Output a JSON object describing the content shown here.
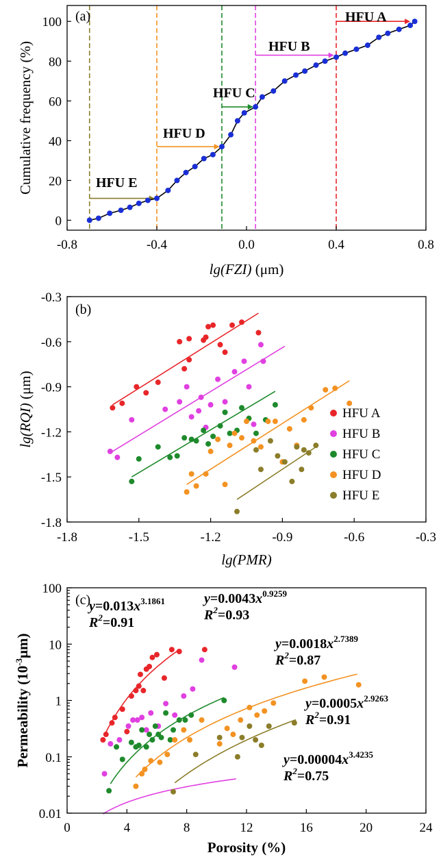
{
  "chart_data": [
    {
      "id": "a",
      "type": "line",
      "panel_label": "(a)",
      "xlabel_italic": "lg(FZI)",
      "xlabel_unit": " (μm)",
      "ylabel": "Cumulative frequency (%)",
      "xlim": [
        -0.8,
        0.8
      ],
      "ylim": [
        -5,
        108
      ],
      "xticks": [
        -0.8,
        -0.4,
        0.0,
        0.4,
        0.8
      ],
      "xtick_labels": [
        "-0.8",
        "-0.4",
        "0.0",
        "0.4",
        "0.8"
      ],
      "yticks": [
        0,
        20,
        40,
        60,
        80,
        100
      ],
      "ytick_labels": [
        "0",
        "20",
        "40",
        "60",
        "80",
        "100"
      ],
      "grid": false,
      "line_color": "#000000",
      "point_color": "#1a2fd6",
      "points": {
        "x": [
          -0.7,
          -0.66,
          -0.61,
          -0.56,
          -0.52,
          -0.48,
          -0.44,
          -0.4,
          -0.35,
          -0.31,
          -0.27,
          -0.23,
          -0.19,
          -0.15,
          -0.11,
          -0.07,
          -0.04,
          -0.01,
          0.04,
          0.07,
          0.12,
          0.17,
          0.22,
          0.26,
          0.31,
          0.35,
          0.4,
          0.44,
          0.49,
          0.54,
          0.59,
          0.63,
          0.68,
          0.73,
          0.75
        ],
        "y": [
          0,
          1,
          3.5,
          5,
          6.5,
          8.5,
          10,
          11,
          15,
          20,
          24,
          27,
          31,
          33,
          37,
          43,
          50,
          54,
          57,
          62,
          65,
          70,
          73,
          75,
          78,
          80,
          82,
          84,
          86,
          88,
          92,
          94,
          96,
          98,
          100
        ]
      },
      "boundaries": [
        {
          "x": -0.7,
          "color": "#8b7d2a"
        },
        {
          "x": -0.4,
          "color": "#f39222"
        },
        {
          "x": -0.11,
          "color": "#1e8a2c"
        },
        {
          "x": 0.04,
          "color": "#e040e0"
        },
        {
          "x": 0.4,
          "color": "#e8262a"
        }
      ],
      "annotations": [
        {
          "text": "HFU E",
          "x0": -0.7,
          "x1": -0.41,
          "y": 11,
          "color": "#8b7d2a"
        },
        {
          "text": "HFU D",
          "x0": -0.4,
          "x1": -0.12,
          "y": 37,
          "color": "#f39222"
        },
        {
          "text": "HFU C",
          "x0": -0.11,
          "x1": 0.03,
          "y": 57,
          "color": "#1e8a2c"
        },
        {
          "text": "HFU B",
          "x0": 0.04,
          "x1": 0.39,
          "y": 83,
          "color": "#e040e0"
        },
        {
          "text": "HFU A",
          "x0": 0.4,
          "x1": 0.73,
          "y": 100,
          "color": "#e8262a"
        }
      ]
    },
    {
      "id": "b",
      "type": "scatter",
      "panel_label": "(b)",
      "xlabel_italic": "lg(PMR)",
      "xlabel_unit": "",
      "ylabel_italic": "lg(RQI)",
      "ylabel_unit": " (μm)",
      "xlim": [
        -1.8,
        -0.3
      ],
      "ylim": [
        -1.8,
        -0.3
      ],
      "xticks": [
        -1.8,
        -1.5,
        -1.2,
        -0.9,
        -0.6,
        -0.3
      ],
      "xtick_labels": [
        "-1.8",
        "-1.5",
        "-1.2",
        "-0.9",
        "-0.6",
        "-0.3"
      ],
      "yticks": [
        -1.8,
        -1.5,
        -1.2,
        -0.9,
        -0.6,
        -0.3
      ],
      "ytick_labels": [
        "-1.8",
        "-1.5",
        "-1.2",
        "-0.9",
        "-0.6",
        "-0.3"
      ],
      "grid": false,
      "legend_position": "right",
      "series": [
        {
          "name": "HFU A",
          "color": "#e8262a",
          "x": [
            -1.61,
            -1.57,
            -1.51,
            -1.47,
            -1.42,
            -1.33,
            -1.31,
            -1.29,
            -1.29,
            -1.23,
            -1.22,
            -1.21,
            -1.19,
            -1.16,
            -1.14,
            -1.11,
            -1.07,
            -1.0
          ],
          "y": [
            -1.04,
            -1.01,
            -0.9,
            -0.94,
            -0.87,
            -0.6,
            -0.78,
            -0.72,
            -0.58,
            -0.59,
            -0.57,
            -0.5,
            -0.49,
            -0.62,
            -0.67,
            -0.49,
            -0.47,
            -0.54
          ],
          "fit": {
            "x": [
              -1.61,
              -1.0
            ],
            "y": [
              -1.02,
              -0.41
            ]
          }
        },
        {
          "name": "HFU B",
          "color": "#e040e0",
          "x": [
            -1.62,
            -1.59,
            -1.53,
            -1.39,
            -1.33,
            -1.3,
            -1.28,
            -1.25,
            -1.24,
            -1.22,
            -1.2,
            -1.17,
            -1.14,
            -1.1,
            -1.06,
            -1.04,
            -1.02,
            -0.99,
            -0.98
          ],
          "y": [
            -1.33,
            -1.37,
            -1.12,
            -1.05,
            -1.0,
            -0.9,
            -1.1,
            -1.06,
            -0.97,
            -1.17,
            -1.02,
            -0.85,
            -1.0,
            -0.8,
            -0.73,
            -0.9,
            -1.15,
            -0.62,
            -0.73
          ],
          "fit": {
            "x": [
              -1.61,
              -0.89
            ],
            "y": [
              -1.33,
              -0.63
            ]
          }
        },
        {
          "name": "HFU C",
          "color": "#1e8a2c",
          "x": [
            -1.53,
            -1.5,
            -1.42,
            -1.37,
            -1.34,
            -1.31,
            -1.28,
            -1.26,
            -1.23,
            -1.21,
            -1.19,
            -1.16,
            -1.14,
            -1.12,
            -1.09,
            -1.07,
            -1.04,
            -1.01,
            -0.97,
            -0.93
          ],
          "y": [
            -1.53,
            -1.38,
            -1.3,
            -1.37,
            -1.36,
            -1.24,
            -1.25,
            -1.26,
            -1.19,
            -1.28,
            -1.23,
            -1.16,
            -1.07,
            -1.21,
            -1.19,
            -1.04,
            -1.11,
            -1.21,
            -1.12,
            -1.02
          ],
          "fit": {
            "x": [
              -1.53,
              -0.93
            ],
            "y": [
              -1.5,
              -0.93
            ]
          }
        },
        {
          "name": "HFU D",
          "color": "#f39222",
          "x": [
            -1.3,
            -1.28,
            -1.26,
            -1.22,
            -1.2,
            -1.17,
            -1.14,
            -1.12,
            -1.1,
            -1.07,
            -1.05,
            -1.02,
            -0.99,
            -0.96,
            -0.93,
            -0.9,
            -0.87,
            -0.84,
            -0.81,
            -0.78,
            -0.72,
            -0.68,
            -0.62
          ],
          "y": [
            -1.6,
            -1.48,
            -1.56,
            -1.48,
            -1.33,
            -1.25,
            -1.55,
            -1.29,
            -1.21,
            -1.24,
            -1.13,
            -1.26,
            -1.3,
            -1.13,
            -1.13,
            -1.4,
            -1.18,
            -1.29,
            -1.12,
            -1.04,
            -0.92,
            -0.91,
            -1.01
          ],
          "fit": {
            "x": [
              -1.3,
              -0.62
            ],
            "y": [
              -1.55,
              -0.86
            ]
          }
        },
        {
          "name": "HFU E",
          "color": "#8b7d2a",
          "x": [
            -1.09,
            -1.01,
            -0.99,
            -0.95,
            -0.92,
            -0.89,
            -0.86,
            -0.84,
            -0.82,
            -0.81,
            -0.79,
            -0.76
          ],
          "y": [
            -1.73,
            -1.32,
            -1.45,
            -1.26,
            -1.36,
            -1.4,
            -1.53,
            -1.3,
            -1.45,
            -1.32,
            -1.34,
            -1.29
          ],
          "fit": {
            "x": [
              -1.09,
              -0.75
            ],
            "y": [
              -1.65,
              -1.29
            ]
          }
        }
      ]
    },
    {
      "id": "c",
      "type": "scatter",
      "panel_label": "(c)",
      "xlabel": "Porosity (%)",
      "ylabel_prefix": "Permeability (10",
      "ylabel_sup": "-3",
      "ylabel_suffix": "μm)",
      "xlim": [
        0,
        24
      ],
      "ylim": [
        0.01,
        100
      ],
      "yscale": "log",
      "xticks": [
        0,
        4,
        8,
        12,
        16,
        20,
        24
      ],
      "xtick_labels": [
        "0",
        "4",
        "8",
        "12",
        "16",
        "20",
        "24"
      ],
      "yticks": [
        0.01,
        0.1,
        1,
        10,
        100
      ],
      "ytick_labels": [
        "0.01",
        "0.1",
        "1",
        "10",
        "100"
      ],
      "grid": false,
      "series": [
        {
          "name": "HFU A",
          "color": "#e8262a",
          "fit": {
            "a": 0.013,
            "b": 3.1861,
            "xmin": 2.5,
            "xmax": 7.5
          },
          "equation": {
            "coef": "0.013",
            "exp": "3.1861",
            "r2": "0.91"
          },
          "x": [
            2.4,
            2.6,
            3.0,
            3.2,
            3.7,
            4.0,
            4.3,
            4.6,
            4.8,
            4.9,
            5.1,
            5.3,
            5.5,
            5.7,
            6.0,
            6.5,
            7.0,
            7.5,
            9.2
          ],
          "y": [
            0.2,
            0.25,
            0.4,
            0.5,
            0.7,
            0.28,
            1.2,
            1.5,
            1.8,
            2.9,
            1.5,
            3.6,
            4.0,
            5.8,
            6.5,
            2.5,
            8.0,
            7.4,
            8.0
          ]
        },
        {
          "name": "HFU B",
          "color": "#e040e0",
          "fit": {
            "a": 0.0043,
            "b": 0.9259,
            "xmin": 2.4,
            "xmax": 11.3
          },
          "equation": {
            "coef": "0.0043",
            "exp": "0.9259",
            "r2": "0.93"
          },
          "x": [
            2.5,
            2.9,
            3.5,
            4.1,
            4.4,
            4.7,
            5.0,
            5.3,
            5.6,
            6.1,
            6.6,
            7.2,
            7.8,
            8.4,
            9.0,
            11.2
          ],
          "y": [
            0.05,
            0.17,
            0.2,
            0.35,
            0.45,
            0.45,
            0.5,
            0.3,
            0.6,
            0.35,
            0.88,
            0.55,
            1.2,
            1.6,
            5.2,
            3.9
          ]
        },
        {
          "name": "HFU C",
          "color": "#1e8a2c",
          "fit": {
            "a": 0.0018,
            "b": 2.7389,
            "xmin": 2.9,
            "xmax": 10.5
          },
          "equation": {
            "coef": "0.0018",
            "exp": "2.7389",
            "r2": "0.87"
          },
          "x": [
            2.8,
            3.3,
            3.7,
            4.3,
            4.6,
            4.8,
            5.0,
            5.3,
            5.5,
            5.7,
            5.9,
            6.1,
            6.3,
            6.6,
            6.9,
            7.1,
            7.5,
            7.9,
            8.3,
            10.5
          ],
          "y": [
            0.025,
            0.15,
            0.09,
            0.18,
            0.15,
            0.16,
            0.3,
            0.15,
            0.25,
            0.2,
            0.35,
            0.25,
            0.22,
            0.6,
            0.2,
            0.3,
            0.45,
            0.45,
            0.55,
            1.0
          ]
        },
        {
          "name": "HFU D",
          "color": "#f39222",
          "fit": {
            "a": 0.0005,
            "b": 2.9263,
            "xmin": 4.6,
            "xmax": 19.4
          },
          "equation": {
            "coef": "0.0005",
            "exp": "2.9263",
            "r2": "0.91"
          },
          "x": [
            4.6,
            5.0,
            5.2,
            5.6,
            6.2,
            6.7,
            7.2,
            7.8,
            8.2,
            9.0,
            10.2,
            10.7,
            11.1,
            11.6,
            12.2,
            12.7,
            13.2,
            13.8,
            15.9,
            17.2,
            19.5
          ],
          "y": [
            0.03,
            0.05,
            0.06,
            0.085,
            0.08,
            0.11,
            0.2,
            0.3,
            0.2,
            0.45,
            0.17,
            0.32,
            0.25,
            0.45,
            0.75,
            0.55,
            0.65,
            0.9,
            2.2,
            2.6,
            1.9
          ]
        },
        {
          "name": "HFU E",
          "color": "#8b7d2a",
          "fit": {
            "a": 4e-05,
            "b": 3.4235,
            "xmin": 7.2,
            "xmax": 15.3
          },
          "equation": {
            "coef": "0.00004",
            "exp": "3.4235",
            "r2": "0.75"
          },
          "x": [
            7.1,
            8.6,
            10.2,
            11.4,
            11.7,
            12.2,
            12.6,
            13.0,
            13.5,
            15.2
          ],
          "y": [
            0.024,
            0.11,
            0.22,
            0.1,
            0.22,
            0.35,
            0.2,
            0.16,
            0.35,
            0.4
          ]
        }
      ]
    }
  ]
}
